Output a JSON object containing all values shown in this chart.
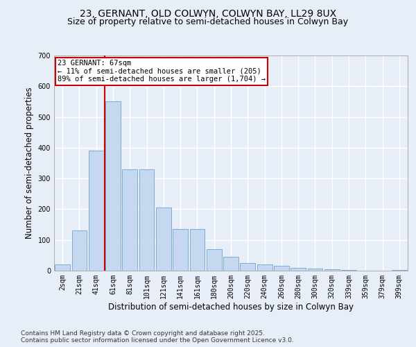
{
  "title_line1": "23, GERNANT, OLD COLWYN, COLWYN BAY, LL29 8UX",
  "title_line2": "Size of property relative to semi-detached houses in Colwyn Bay",
  "xlabel": "Distribution of semi-detached houses by size in Colwyn Bay",
  "ylabel": "Number of semi-detached properties",
  "bar_labels": [
    "2sqm",
    "21sqm",
    "41sqm",
    "61sqm",
    "81sqm",
    "101sqm",
    "121sqm",
    "141sqm",
    "161sqm",
    "180sqm",
    "200sqm",
    "220sqm",
    "240sqm",
    "260sqm",
    "280sqm",
    "300sqm",
    "320sqm",
    "339sqm",
    "359sqm",
    "379sqm",
    "399sqm"
  ],
  "bar_values": [
    20,
    130,
    390,
    550,
    330,
    330,
    205,
    135,
    135,
    70,
    45,
    25,
    20,
    15,
    10,
    7,
    4,
    2,
    1,
    0,
    2
  ],
  "bar_color": "#c5d8f0",
  "bar_edge_color": "#7baed4",
  "property_line_x": 3,
  "annotation_text": "23 GERNANT: 67sqm\n← 11% of semi-detached houses are smaller (205)\n89% of semi-detached houses are larger (1,704) →",
  "annotation_box_color": "#ffffff",
  "annotation_edge_color": "#cc0000",
  "vline_color": "#cc0000",
  "ylim": [
    0,
    700
  ],
  "yticks": [
    0,
    100,
    200,
    300,
    400,
    500,
    600,
    700
  ],
  "footer_line1": "Contains HM Land Registry data © Crown copyright and database right 2025.",
  "footer_line2": "Contains public sector information licensed under the Open Government Licence v3.0.",
  "background_color": "#e8eef8",
  "plot_bg_color": "#e8eef8",
  "grid_color": "#ffffff",
  "title_fontsize": 10,
  "subtitle_fontsize": 9,
  "axis_label_fontsize": 8.5,
  "tick_fontsize": 7,
  "footer_fontsize": 6.5,
  "annot_fontsize": 7.5
}
